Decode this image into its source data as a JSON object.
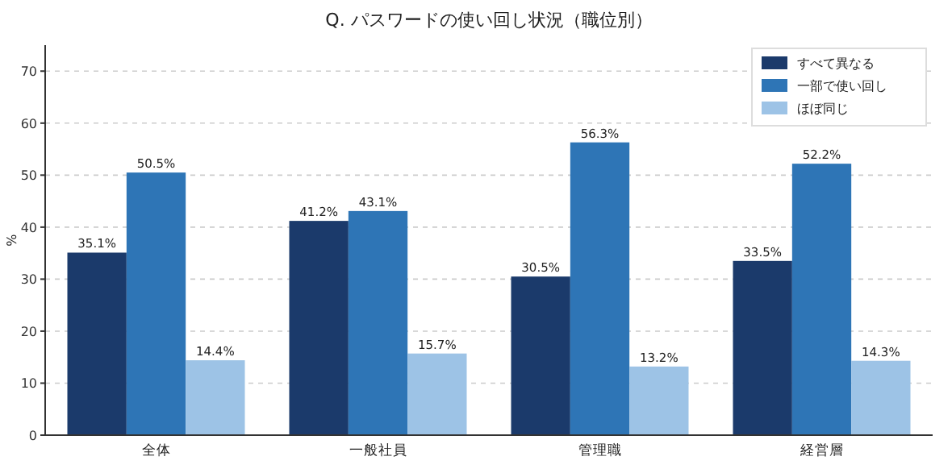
{
  "chart_data": {
    "type": "bar",
    "title": "Q. パスワードの使い回し状況（職位別）",
    "ylabel": "%",
    "categories": [
      "全体",
      "一般社員",
      "管理職",
      "経営層"
    ],
    "series": [
      {
        "name": "すべて異なる",
        "color": "#1b3a6b",
        "values": [
          35.1,
          41.2,
          30.5,
          33.5
        ],
        "value_labels": [
          "35.1%",
          "41.2%",
          "30.5%",
          "33.5%"
        ]
      },
      {
        "name": "一部で使い回し",
        "color": "#2e75b6",
        "values": [
          50.5,
          43.1,
          56.3,
          52.2
        ],
        "value_labels": [
          "50.5%",
          "43.1%",
          "56.3%",
          "52.2%"
        ]
      },
      {
        "name": "ほぼ同じ",
        "color": "#9dc3e6",
        "values": [
          14.4,
          15.7,
          13.2,
          14.3
        ],
        "value_labels": [
          "14.4%",
          "15.7%",
          "13.2%",
          "14.3%"
        ]
      }
    ],
    "ylim": [
      0,
      75
    ],
    "yticks": [
      0,
      10,
      20,
      30,
      40,
      50,
      60,
      70
    ],
    "grid": "y",
    "legend": "top right"
  }
}
